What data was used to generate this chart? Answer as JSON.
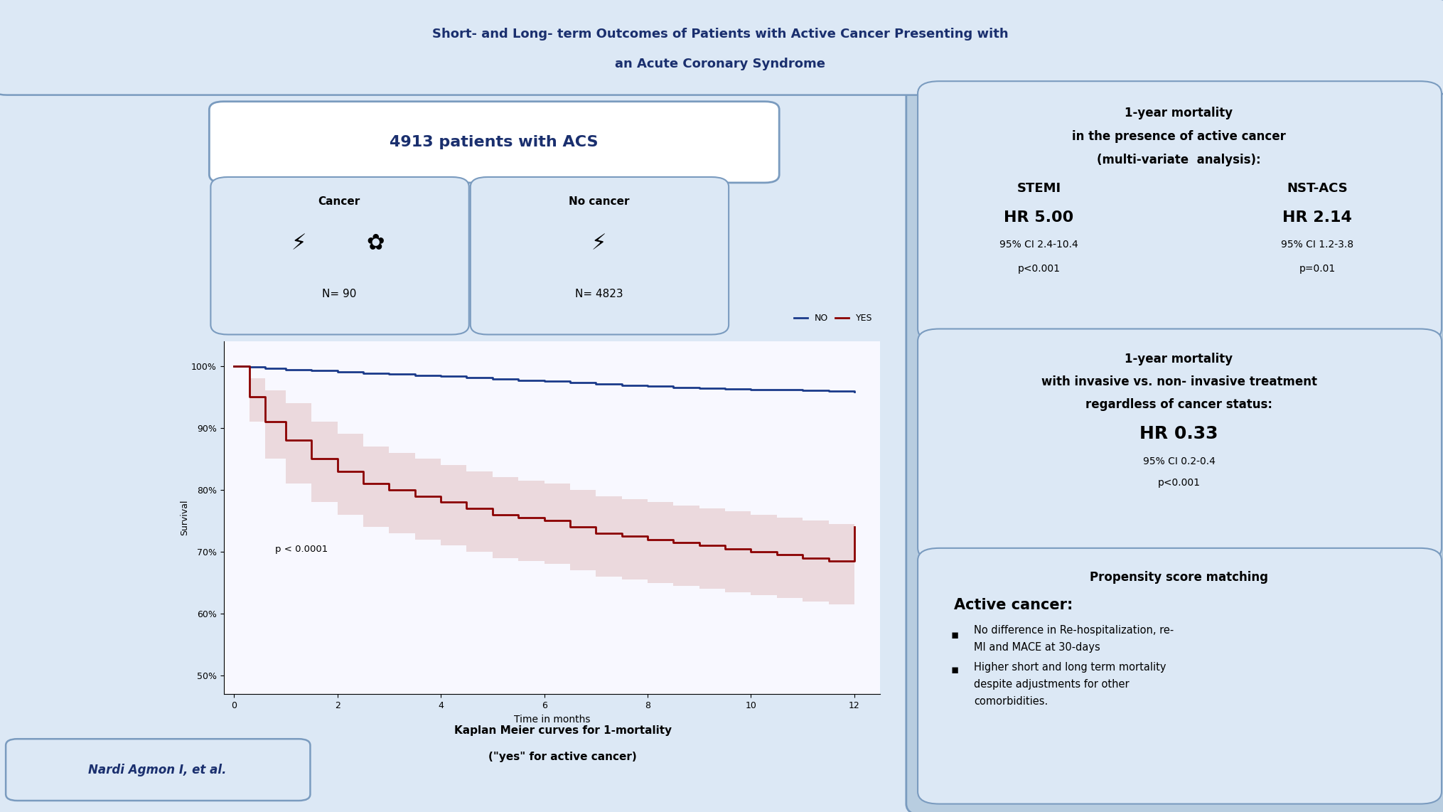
{
  "title_line1": "Short- and Long- term Outcomes of Patients with Active Cancer Presenting with",
  "title_line2": "an Acute Coronary Syndrome",
  "patients_label": "4913 patients with ACS",
  "cancer_label": "Cancer",
  "cancer_n": "N= 90",
  "no_cancer_label": "No cancer",
  "no_cancer_n": "N= 4823",
  "km_caption1": "Kaplan Meier curves for 1-mortality",
  "km_caption2": "(\"yes\" for active cancer)",
  "p_value": "p < 0.0001",
  "km_legend_no": "NO",
  "km_legend_yes": "YES",
  "km_xlabel": "Time in months",
  "km_ylabel": "Survival",
  "km_yticks": [
    50,
    60,
    70,
    80,
    90,
    100
  ],
  "km_ylim": [
    47,
    104
  ],
  "km_xlim": [
    -0.2,
    12.5
  ],
  "km_xticks": [
    0,
    2,
    4,
    6,
    8,
    10,
    12
  ],
  "author_label": "Nardi Agmon I, et al.",
  "box1_l1": "1-year mortality",
  "box1_l2": "in the presence of active cancer",
  "box1_l3": "(multi-variate  analysis):",
  "box1_stemi_label": "STEMI",
  "box1_stemi_hr": "HR 5.00",
  "box1_stemi_ci": "95% CI 2.4-10.4",
  "box1_stemi_p": "p<0.001",
  "box1_nst_label": "NST-ACS",
  "box1_nst_hr": "HR 2.14",
  "box1_nst_ci": "95% CI 1.2-3.8",
  "box1_nst_p": "p=0.01",
  "box2_l1": "1-year mortality",
  "box2_l2": "with invasive vs. non- invasive treatment",
  "box2_l3": "regardless of cancer status:",
  "box2_hr": "HR 0.33",
  "box2_ci": "95% CI 0.2-0.4",
  "box2_p": "p<0.001",
  "box3_title": "Propensity score matching",
  "box3_subtitle": "Active cancer:",
  "box3_b1a": "No difference in Re-hospitalization, re-",
  "box3_b1b": "MI and MACE at 30-days",
  "box3_b2a": "Higher short and long term mortality",
  "box3_b2b": "despite adjustments for other",
  "box3_b2c": "comorbidities.",
  "bg_outer": "#b8cde0",
  "bg_left": "#dce8f5",
  "bg_left_inner": "#c8d9ee",
  "bg_right_outer": "#b8cde0",
  "box_fill": "#dce8f5",
  "box_edge": "#7a9bbf",
  "title_color": "#1a2f6e",
  "dark_blue": "#1a2f6e",
  "black": "#000000",
  "km_no_color": "#1a3a8a",
  "km_yes_color": "#8b0000",
  "km_yes_fill": "#d4a0a0",
  "km_plot_bg": "#f8f8ff",
  "km_no_x": [
    0,
    0.3,
    0.6,
    1,
    1.5,
    2,
    2.5,
    3,
    3.5,
    4,
    4.5,
    5,
    5.5,
    6,
    6.5,
    7,
    7.5,
    8,
    8.5,
    9,
    9.5,
    10,
    10.5,
    11,
    11.5,
    12
  ],
  "km_no_y": [
    100,
    99.8,
    99.6,
    99.4,
    99.2,
    99.0,
    98.8,
    98.7,
    98.5,
    98.3,
    98.1,
    97.9,
    97.7,
    97.5,
    97.3,
    97.1,
    96.9,
    96.7,
    96.5,
    96.4,
    96.3,
    96.2,
    96.1,
    96.0,
    95.9,
    95.8
  ],
  "km_yes_x": [
    0,
    0.3,
    0.6,
    1,
    1.5,
    2,
    2.5,
    3,
    3.5,
    4,
    4.5,
    5,
    5.5,
    6,
    6.5,
    7,
    7.5,
    8,
    8.5,
    9,
    9.5,
    10,
    10.5,
    11,
    11.5,
    12
  ],
  "km_yes_y": [
    100,
    95,
    91,
    88,
    85,
    83,
    81,
    80,
    79,
    78,
    77,
    76,
    75.5,
    75,
    74,
    73,
    72.5,
    72,
    71.5,
    71,
    70.5,
    70,
    69.5,
    69,
    68.5,
    74
  ],
  "km_yes_upper": [
    100,
    98,
    96,
    94,
    91,
    89,
    87,
    86,
    85,
    84,
    83,
    82,
    81.5,
    81,
    80,
    79,
    78.5,
    78,
    77.5,
    77,
    76.5,
    76,
    75.5,
    75,
    74.5,
    80
  ],
  "km_yes_lower": [
    100,
    91,
    85,
    81,
    78,
    76,
    74,
    73,
    72,
    71,
    70,
    69,
    68.5,
    68,
    67,
    66,
    65.5,
    65,
    64.5,
    64,
    63.5,
    63,
    62.5,
    62,
    61.5,
    67
  ]
}
